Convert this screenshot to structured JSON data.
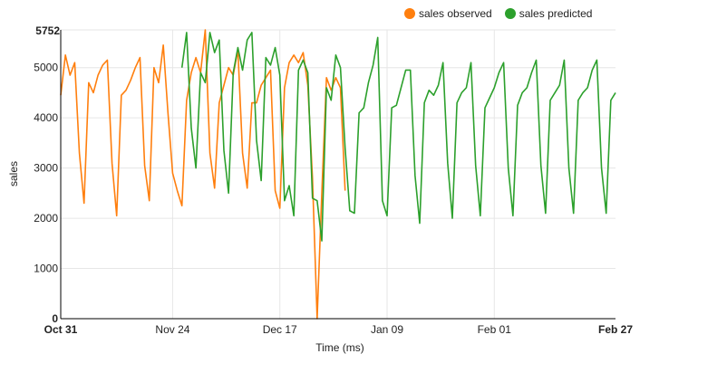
{
  "chart_data": {
    "type": "line",
    "xlabel": "Time (ms)",
    "ylabel": "sales",
    "x_domain": [
      "2016-10-31",
      "2017-02-27"
    ],
    "ylim": [
      0,
      5752
    ],
    "y_max_label": "5752",
    "x_ticks": [
      {
        "label": "Oct 31",
        "date": "2016-10-31",
        "bold": true
      },
      {
        "label": "Nov 24",
        "date": "2016-11-24",
        "bold": false
      },
      {
        "label": "Dec 17",
        "date": "2016-12-17",
        "bold": false
      },
      {
        "label": "Jan 09",
        "date": "2017-01-09",
        "bold": false
      },
      {
        "label": "Feb 01",
        "date": "2017-02-01",
        "bold": false
      },
      {
        "label": "Feb 27",
        "date": "2017-02-27",
        "bold": true
      }
    ],
    "y_ticks": [
      {
        "label": "0",
        "value": 0,
        "bold": true
      },
      {
        "label": "1000",
        "value": 1000,
        "bold": false
      },
      {
        "label": "2000",
        "value": 2000,
        "bold": false
      },
      {
        "label": "3000",
        "value": 3000,
        "bold": false
      },
      {
        "label": "4000",
        "value": 4000,
        "bold": false
      },
      {
        "label": "5000",
        "value": 5000,
        "bold": false
      }
    ],
    "grid": true,
    "legend_position": "top-right",
    "series": [
      {
        "name": "sales observed",
        "color": "#ff7f0e",
        "x": [
          "2016-10-31",
          "2016-11-01",
          "2016-11-02",
          "2016-11-03",
          "2016-11-04",
          "2016-11-05",
          "2016-11-06",
          "2016-11-07",
          "2016-11-08",
          "2016-11-09",
          "2016-11-10",
          "2016-11-11",
          "2016-11-12",
          "2016-11-13",
          "2016-11-14",
          "2016-11-15",
          "2016-11-16",
          "2016-11-17",
          "2016-11-18",
          "2016-11-19",
          "2016-11-20",
          "2016-11-21",
          "2016-11-22",
          "2016-11-23",
          "2016-11-24",
          "2016-11-25",
          "2016-11-26",
          "2016-11-27",
          "2016-11-28",
          "2016-11-29",
          "2016-11-30",
          "2016-12-01",
          "2016-12-02",
          "2016-12-03",
          "2016-12-04",
          "2016-12-05",
          "2016-12-06",
          "2016-12-07",
          "2016-12-08",
          "2016-12-09",
          "2016-12-10",
          "2016-12-11",
          "2016-12-12",
          "2016-12-13",
          "2016-12-14",
          "2016-12-15",
          "2016-12-16",
          "2016-12-17",
          "2016-12-18",
          "2016-12-19",
          "2016-12-20",
          "2016-12-21",
          "2016-12-22",
          "2016-12-23",
          "2016-12-24",
          "2016-12-25",
          "2016-12-26",
          "2016-12-27",
          "2016-12-28",
          "2016-12-29",
          "2016-12-30",
          "2016-12-31"
        ],
        "values": [
          4450,
          5250,
          4850,
          5100,
          3300,
          2300,
          4700,
          4500,
          4850,
          5050,
          5150,
          3100,
          2050,
          4450,
          4550,
          4750,
          5000,
          5200,
          3050,
          2350,
          5000,
          4700,
          5450,
          4100,
          2900,
          2550,
          2250,
          4350,
          4900,
          5200,
          4900,
          5752,
          3300,
          2600,
          4300,
          4650,
          5000,
          4850,
          5350,
          3300,
          2600,
          4300,
          4300,
          4650,
          4800,
          4950,
          2550,
          2200,
          4600,
          5100,
          5250,
          5100,
          5300,
          4650,
          2800,
          0,
          2500,
          4800,
          4550,
          4800,
          4600,
          2550
        ]
      },
      {
        "name": "sales predicted",
        "color": "#2ca02c",
        "x": [
          "2016-11-26",
          "2016-11-27",
          "2016-11-28",
          "2016-11-29",
          "2016-11-30",
          "2016-12-01",
          "2016-12-02",
          "2016-12-03",
          "2016-12-04",
          "2016-12-05",
          "2016-12-06",
          "2016-12-07",
          "2016-12-08",
          "2016-12-09",
          "2016-12-10",
          "2016-12-11",
          "2016-12-12",
          "2016-12-13",
          "2016-12-14",
          "2016-12-15",
          "2016-12-16",
          "2016-12-17",
          "2016-12-18",
          "2016-12-19",
          "2016-12-20",
          "2016-12-21",
          "2016-12-22",
          "2016-12-23",
          "2016-12-24",
          "2016-12-25",
          "2016-12-26",
          "2016-12-27",
          "2016-12-28",
          "2016-12-29",
          "2016-12-30",
          "2016-12-31",
          "2017-01-01",
          "2017-01-02",
          "2017-01-03",
          "2017-01-04",
          "2017-01-05",
          "2017-01-06",
          "2017-01-07",
          "2017-01-08",
          "2017-01-09",
          "2017-01-10",
          "2017-01-11",
          "2017-01-12",
          "2017-01-13",
          "2017-01-14",
          "2017-01-15",
          "2017-01-16",
          "2017-01-17",
          "2017-01-18",
          "2017-01-19",
          "2017-01-20",
          "2017-01-21",
          "2017-01-22",
          "2017-01-23",
          "2017-01-24",
          "2017-01-25",
          "2017-01-26",
          "2017-01-27",
          "2017-01-28",
          "2017-01-29",
          "2017-01-30",
          "2017-01-31",
          "2017-02-01",
          "2017-02-02",
          "2017-02-03",
          "2017-02-04",
          "2017-02-05",
          "2017-02-06",
          "2017-02-07",
          "2017-02-08",
          "2017-02-09",
          "2017-02-10",
          "2017-02-11",
          "2017-02-12",
          "2017-02-13",
          "2017-02-14",
          "2017-02-15",
          "2017-02-16",
          "2017-02-17",
          "2017-02-18",
          "2017-02-19",
          "2017-02-20",
          "2017-02-21",
          "2017-02-22",
          "2017-02-23",
          "2017-02-24",
          "2017-02-25",
          "2017-02-26",
          "2017-02-27"
        ],
        "values": [
          5000,
          5700,
          3800,
          3000,
          4900,
          4700,
          5700,
          5300,
          5550,
          3350,
          2500,
          4900,
          5400,
          4950,
          5550,
          5700,
          3550,
          2750,
          5200,
          5050,
          5400,
          4850,
          2350,
          2650,
          2050,
          4950,
          5150,
          4900,
          2400,
          2350,
          1550,
          4600,
          4350,
          5250,
          5000,
          3400,
          2150,
          2100,
          4100,
          4200,
          4700,
          5050,
          5600,
          2350,
          2050,
          4200,
          4250,
          4600,
          4950,
          4950,
          2850,
          1900,
          4300,
          4550,
          4450,
          4650,
          5100,
          3100,
          2000,
          4300,
          4500,
          4600,
          5100,
          3050,
          2050,
          4200,
          4400,
          4600,
          4900,
          5100,
          3000,
          2050,
          4250,
          4500,
          4600,
          4900,
          5150,
          3050,
          2100,
          4350,
          4500,
          4650,
          5150,
          3000,
          2100,
          4350,
          4500,
          4600,
          4950,
          5150,
          3000,
          2100,
          4350,
          4500
        ]
      }
    ]
  }
}
